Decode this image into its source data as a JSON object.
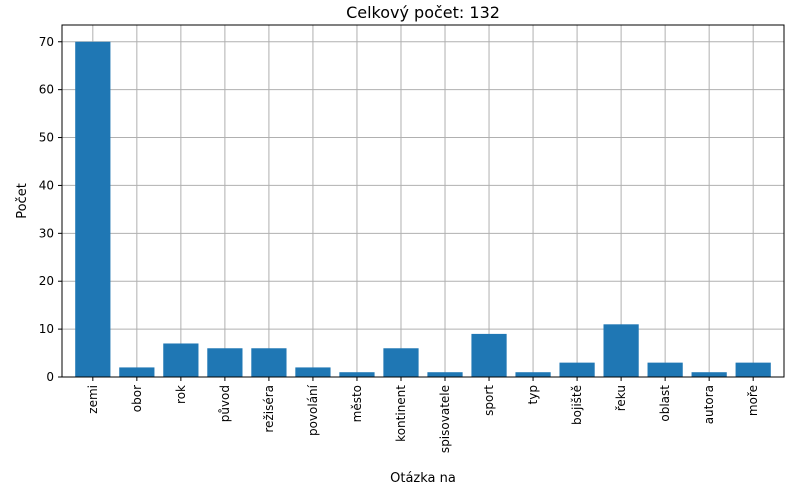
{
  "chart_data": {
    "type": "bar",
    "title": "Celkový počet: 132",
    "xlabel": "Otázka na",
    "ylabel": "Počet",
    "categories": [
      "zemi",
      "obor",
      "rok",
      "původ",
      "režiséra",
      "povolání",
      "město",
      "kontinent",
      "spisovatele",
      "sport",
      "typ",
      "bojiště",
      "řeku",
      "oblast",
      "autora",
      "moře"
    ],
    "values": [
      70,
      2,
      7,
      6,
      6,
      2,
      1,
      6,
      1,
      9,
      1,
      3,
      11,
      3,
      1,
      3
    ],
    "ylim": [
      0,
      73.5
    ],
    "yticks": [
      0,
      10,
      20,
      30,
      40,
      50,
      60,
      70
    ],
    "grid": true,
    "bar_color": "#1f77b4"
  }
}
